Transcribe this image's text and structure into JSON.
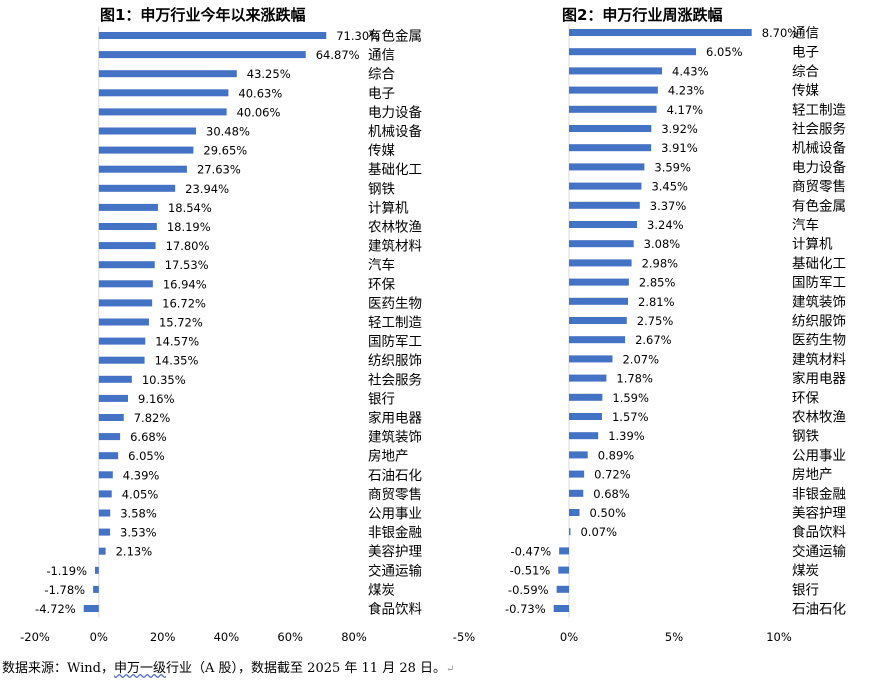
{
  "colors": {
    "bar": "#4472C4",
    "text": "#000000"
  },
  "footer": {
    "prefix": "数据来源：Wind，",
    "link_text": "申万一级",
    "suffix": "行业（A 股），数据截至 2025 年 11 月 28 日。",
    "mark": "↵"
  },
  "chart_data": [
    {
      "type": "bar",
      "orientation": "horizontal",
      "title": "图1：申万行业今年以来涨跌幅",
      "xlim": [
        -20,
        80
      ],
      "xticks": [
        -20,
        0,
        20,
        40,
        60,
        80
      ],
      "tick_labels": [
        "-20%",
        "0%",
        "20%",
        "40%",
        "60%",
        "80%"
      ],
      "categories": [
        "有色金属",
        "通信",
        "综合",
        "电子",
        "电力设备",
        "机械设备",
        "传媒",
        "基础化工",
        "钢铁",
        "计算机",
        "农林牧渔",
        "建筑材料",
        "汽车",
        "环保",
        "医药生物",
        "轻工制造",
        "国防军工",
        "纺织服饰",
        "社会服务",
        "银行",
        "家用电器",
        "建筑装饰",
        "房地产",
        "石油石化",
        "商贸零售",
        "公用事业",
        "非银金融",
        "美容护理",
        "交通运输",
        "煤炭",
        "食品饮料"
      ],
      "values": [
        71.3,
        64.87,
        43.25,
        40.63,
        40.06,
        30.48,
        29.65,
        27.63,
        23.94,
        18.54,
        18.19,
        17.8,
        17.53,
        16.94,
        16.72,
        15.72,
        14.57,
        14.35,
        10.35,
        9.16,
        7.82,
        6.68,
        6.05,
        4.39,
        4.05,
        3.58,
        3.53,
        2.13,
        -1.19,
        -1.78,
        -4.72
      ],
      "value_labels": [
        "71.30%",
        "64.87%",
        "43.25%",
        "40.63%",
        "40.06%",
        "30.48%",
        "29.65%",
        "27.63%",
        "23.94%",
        "18.54%",
        "18.19%",
        "17.80%",
        "17.53%",
        "16.94%",
        "16.72%",
        "15.72%",
        "14.57%",
        "14.35%",
        "10.35%",
        "9.16%",
        "7.82%",
        "6.68%",
        "6.05%",
        "4.39%",
        "4.05%",
        "3.58%",
        "3.53%",
        "2.13%",
        "-1.19%",
        "-1.78%",
        "-4.72%"
      ]
    },
    {
      "type": "bar",
      "orientation": "horizontal",
      "title": "图2：申万行业周涨跌幅",
      "xlim": [
        -5,
        10
      ],
      "xticks": [
        -5,
        0,
        5,
        10
      ],
      "tick_labels": [
        "-5%",
        "0%",
        "5%",
        "10%"
      ],
      "categories": [
        "通信",
        "电子",
        "综合",
        "传媒",
        "轻工制造",
        "社会服务",
        "机械设备",
        "电力设备",
        "商贸零售",
        "有色金属",
        "汽车",
        "计算机",
        "基础化工",
        "国防军工",
        "建筑装饰",
        "纺织服饰",
        "医药生物",
        "建筑材料",
        "家用电器",
        "环保",
        "农林牧渔",
        "钢铁",
        "公用事业",
        "房地产",
        "非银金融",
        "美容护理",
        "食品饮料",
        "交通运输",
        "煤炭",
        "银行",
        "石油石化"
      ],
      "values": [
        8.7,
        6.05,
        4.43,
        4.23,
        4.17,
        3.92,
        3.91,
        3.59,
        3.45,
        3.37,
        3.24,
        3.08,
        2.98,
        2.85,
        2.81,
        2.75,
        2.67,
        2.07,
        1.78,
        1.59,
        1.57,
        1.39,
        0.89,
        0.72,
        0.68,
        0.5,
        0.07,
        -0.47,
        -0.51,
        -0.59,
        -0.73
      ],
      "value_labels": [
        "8.70%",
        "6.05%",
        "4.43%",
        "4.23%",
        "4.17%",
        "3.92%",
        "3.91%",
        "3.59%",
        "3.45%",
        "3.37%",
        "3.24%",
        "3.08%",
        "2.98%",
        "2.85%",
        "2.81%",
        "2.75%",
        "2.67%",
        "2.07%",
        "1.78%",
        "1.59%",
        "1.57%",
        "1.39%",
        "0.89%",
        "0.72%",
        "0.68%",
        "0.50%",
        "0.07%",
        "-0.47%",
        "-0.51%",
        "-0.59%",
        "-0.73%"
      ]
    }
  ]
}
